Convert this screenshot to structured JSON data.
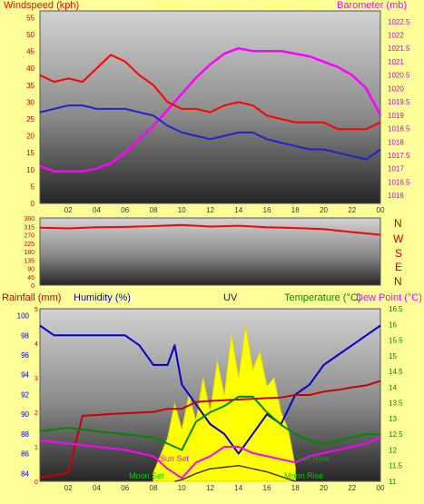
{
  "colors": {
    "background": "#ffff99",
    "windspeed": "#ff0000",
    "gust_avg": "#2222cc",
    "barometer": "#ff00ff",
    "direction": "#ff0000",
    "rainfall": "#cc0000",
    "humidity": "#0000cc",
    "uv": "#ffff00",
    "temperature": "#008800",
    "dew_point": "#ff00ff",
    "solar": "#333333"
  },
  "header": {
    "windspeed_title": "Windspeed (kph)",
    "date_text": "24 hour graph date: 24 October 2018",
    "barometer_title": "Barometer (mb)"
  },
  "direction_labels": [
    "N",
    "W",
    "S",
    "E",
    "N"
  ],
  "bottom_header": {
    "rainfall_title": "Rainfall (mm)",
    "humidity_title": "Humidity (%)",
    "uv_title": "UV",
    "temperature_title": "Temperature (°C)",
    "dewpoint_title": "Dew Point (°C)"
  },
  "annotations": {
    "sun_set": "Sun Set",
    "sun_rise": "Sun Rise",
    "moon_set": "Moon Set",
    "moon_rise": "Moon Rise"
  },
  "chart_data": [
    {
      "type": "line",
      "title": "Windspeed / Barometer",
      "x_ticks": [
        "02",
        "04",
        "06",
        "08",
        "10",
        "12",
        "14",
        "16",
        "18",
        "20",
        "22",
        "00"
      ],
      "ylabel": "Windspeed (kph)",
      "y_ticks": [
        0,
        5,
        10,
        15,
        20,
        25,
        30,
        35,
        40,
        45,
        50,
        55
      ],
      "ylim": [
        0,
        57
      ],
      "y2label": "Barometer (mb)",
      "y2_ticks": [
        "1016",
        "1016.5",
        "1017",
        "1017.5",
        "1018",
        "1018.5",
        "1019",
        "1019.5",
        "1020",
        "1020.5",
        "1021",
        "1021.5",
        "1022",
        "1022.5"
      ],
      "y2lim": [
        1015.7,
        1022.9
      ],
      "series": [
        {
          "name": "Windspeed",
          "axis": "left",
          "x": [
            0,
            1,
            2,
            3,
            4,
            5,
            6,
            7,
            8,
            9,
            10,
            11,
            12,
            13,
            14,
            15,
            16,
            17,
            18,
            19,
            20,
            21,
            22,
            23,
            24
          ],
          "values": [
            38,
            36,
            37,
            36,
            40,
            44,
            42,
            38,
            35,
            30,
            28,
            28,
            27,
            29,
            30,
            29,
            26,
            25,
            24,
            24,
            24,
            22,
            22,
            22,
            24
          ]
        },
        {
          "name": "Average",
          "axis": "left",
          "x": [
            0,
            1,
            2,
            3,
            4,
            5,
            6,
            7,
            8,
            9,
            10,
            11,
            12,
            13,
            14,
            15,
            16,
            17,
            18,
            19,
            20,
            21,
            22,
            23,
            24
          ],
          "values": [
            27,
            28,
            29,
            29,
            28,
            28,
            28,
            27,
            26,
            23,
            21,
            20,
            19,
            20,
            21,
            21,
            19,
            18,
            17,
            16,
            16,
            15,
            14,
            13,
            16
          ]
        },
        {
          "name": "Barometer",
          "axis": "right",
          "x": [
            0,
            1,
            2,
            3,
            4,
            5,
            6,
            7,
            8,
            9,
            10,
            11,
            12,
            13,
            14,
            15,
            16,
            17,
            18,
            19,
            20,
            21,
            22,
            23,
            24
          ],
          "values": [
            1017.1,
            1016.9,
            1016.9,
            1016.9,
            1017.0,
            1017.2,
            1017.6,
            1018.1,
            1018.6,
            1019.2,
            1019.8,
            1020.4,
            1020.9,
            1021.3,
            1021.5,
            1021.4,
            1021.4,
            1021.4,
            1021.3,
            1021.2,
            1021.0,
            1020.8,
            1020.5,
            1020.0,
            1019.0
          ]
        }
      ]
    },
    {
      "type": "line",
      "title": "Wind Direction",
      "y_ticks": [
        0,
        45,
        90,
        135,
        180,
        225,
        270,
        315,
        360
      ],
      "ylim": [
        0,
        360
      ],
      "series": [
        {
          "name": "Direction",
          "x": [
            0,
            2,
            4,
            6,
            8,
            10,
            12,
            14,
            16,
            18,
            20,
            22,
            24
          ],
          "values": [
            308,
            304,
            310,
            312,
            316,
            322,
            314,
            318,
            310,
            306,
            300,
            284,
            270
          ]
        }
      ]
    },
    {
      "type": "line",
      "title": "Rainfall / Humidity / UV / Temperature / Dew Point",
      "ylabel": "Humidity (%)",
      "y_ticks": [
        84,
        86,
        88,
        90,
        92,
        94,
        96,
        98,
        100
      ],
      "ylim": [
        83.2,
        100.7
      ],
      "rain_ticks": [
        0,
        1,
        2,
        3,
        4,
        5
      ],
      "temp_ticks": [
        "11",
        "11.5",
        "12",
        "12.5",
        "13",
        "13.5",
        "14",
        "14.5",
        "15",
        "15.5",
        "16",
        "16.5"
      ],
      "templim": [
        11,
        16.5
      ],
      "uvlim": [
        0,
        10
      ],
      "series": [
        {
          "name": "Humidity",
          "axis": "humidity",
          "x": [
            0,
            1,
            2,
            3,
            4,
            5,
            6,
            7,
            8,
            9,
            9.5,
            10,
            11,
            12,
            13,
            14,
            15,
            16,
            17,
            18,
            19,
            20,
            21,
            22,
            23,
            24
          ],
          "values": [
            99,
            98,
            98,
            98,
            98,
            98,
            98,
            97,
            95,
            95,
            97,
            93,
            91,
            89,
            88,
            86,
            88,
            90,
            89,
            92,
            93,
            95,
            96,
            97,
            98,
            99
          ]
        },
        {
          "name": "Rainfall",
          "axis": "rain",
          "x": [
            0,
            2,
            3,
            4,
            5,
            6,
            7,
            8,
            9,
            10,
            11,
            12,
            13,
            14,
            15,
            16,
            17,
            18,
            19,
            20,
            21,
            22,
            23,
            24
          ],
          "values": [
            0.1,
            0.25,
            1.9,
            1.92,
            1.95,
            1.97,
            1.99,
            2.01,
            2.1,
            2.1,
            2.3,
            2.33,
            2.35,
            2.37,
            2.39,
            2.41,
            2.43,
            2.5,
            2.5,
            2.6,
            2.65,
            2.72,
            2.78,
            2.91
          ]
        },
        {
          "name": "Temperature",
          "axis": "temp",
          "x": [
            0,
            2,
            4,
            6,
            8,
            9,
            10,
            11,
            12,
            13,
            14,
            15,
            16,
            17,
            18,
            19,
            20,
            21,
            22,
            23,
            24
          ],
          "values": [
            12.6,
            12.7,
            12.6,
            12.5,
            12.4,
            12.2,
            12.0,
            12.9,
            13.2,
            13.4,
            13.7,
            13.7,
            13.2,
            12.8,
            12.5,
            12.3,
            12.2,
            12.3,
            12.4,
            12.5,
            12.5
          ]
        },
        {
          "name": "Dew Point",
          "axis": "temp",
          "x": [
            0,
            2,
            4,
            6,
            8,
            9,
            10,
            11,
            12,
            13,
            14,
            15,
            16,
            17,
            18,
            19,
            20,
            21,
            22,
            23,
            24
          ],
          "values": [
            12.3,
            12.2,
            12.1,
            12.0,
            11.8,
            11.4,
            11.1,
            11.6,
            11.8,
            12.1,
            12.1,
            11.9,
            11.8,
            11.7,
            11.6,
            11.8,
            11.9,
            12.0,
            12.1,
            12.2,
            12.4
          ]
        },
        {
          "name": "Solar",
          "axis": "temp",
          "x": [
            9.5,
            10,
            11,
            12,
            13,
            14,
            15,
            16,
            17,
            18
          ],
          "values": [
            11.0,
            11.05,
            11.25,
            11.4,
            11.45,
            11.5,
            11.4,
            11.3,
            11.15,
            11.0
          ]
        },
        {
          "name": "UV",
          "axis": "uv",
          "x": [
            8,
            9,
            9.5,
            10,
            10.5,
            11,
            11.5,
            12,
            12.5,
            13,
            13.5,
            14,
            14.5,
            15,
            15.5,
            16,
            16.5,
            17,
            17.5,
            18
          ],
          "values": [
            0.5,
            2.5,
            4.5,
            3.0,
            5.0,
            3.5,
            6.0,
            4.0,
            7.0,
            5.0,
            8.5,
            6.0,
            9.0,
            6.5,
            7.5,
            5.5,
            6.0,
            4.0,
            3.0,
            0.8
          ]
        }
      ]
    }
  ]
}
